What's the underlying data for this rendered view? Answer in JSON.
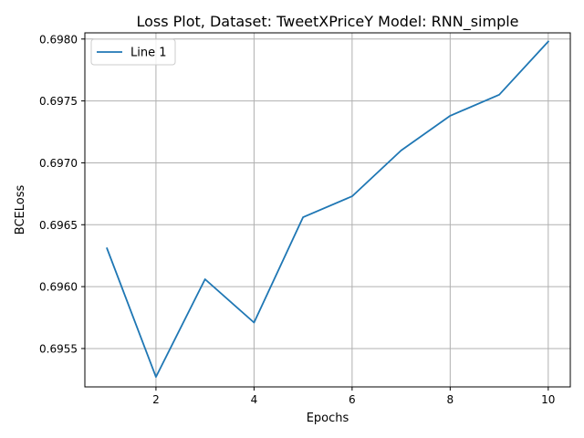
{
  "chart_data": {
    "type": "line",
    "title": "Loss Plot, Dataset: TweetXPriceY Model: RNN_simple",
    "xlabel": "Epochs",
    "ylabel": "BCELoss",
    "x": [
      1,
      2,
      3,
      4,
      5,
      6,
      7,
      8,
      9,
      10
    ],
    "series": [
      {
        "name": "Line 1",
        "color": "#1f77b4",
        "values": [
          0.69631,
          0.69527,
          0.69606,
          0.69571,
          0.69656,
          0.69673,
          0.6971,
          0.69738,
          0.69755,
          0.69798
        ]
      }
    ],
    "xlim": [
      0.55,
      10.45
    ],
    "ylim": [
      0.69519,
      0.69805
    ],
    "xticks": [
      2,
      4,
      6,
      8,
      10
    ],
    "xtick_labels": [
      "2",
      "4",
      "6",
      "8",
      "10"
    ],
    "yticks": [
      0.6955,
      0.696,
      0.6965,
      0.697,
      0.6975,
      0.698
    ],
    "ytick_labels": [
      "0.6955",
      "0.6960",
      "0.6965",
      "0.6970",
      "0.6975",
      "0.6980"
    ],
    "grid": true,
    "grid_color": "#b0b0b0",
    "legend_position": "upper-left"
  }
}
